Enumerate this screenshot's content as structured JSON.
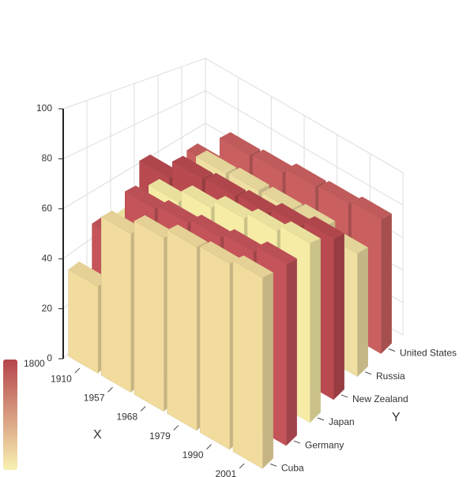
{
  "chart_data": {
    "type": "bar3d",
    "categories": [
      "1910",
      "1957",
      "1968",
      "1979",
      "1990",
      "2001"
    ],
    "series": [
      {
        "name": "Cuba",
        "color": "#f1dc9e",
        "values": [
          35,
          64,
          70,
          74,
          75,
          77
        ]
      },
      {
        "name": "Germany",
        "color": "#c4545a",
        "values": [
          47,
          69,
          71,
          73,
          75,
          78
        ]
      },
      {
        "name": "Japan",
        "color": "#f6eca6",
        "values": [
          44,
          66,
          72,
          76,
          79,
          82
        ]
      },
      {
        "name": "New Zealand",
        "color": "#b84a50",
        "values": [
          62,
          71,
          72,
          73,
          76,
          79
        ]
      },
      {
        "name": "Russia",
        "color": "#efdfa2",
        "values": [
          33,
          67,
          68,
          68,
          69,
          65
        ]
      },
      {
        "name": "United States",
        "color": "#c9605f",
        "values": [
          52,
          70,
          71,
          74,
          75,
          77
        ]
      }
    ],
    "x_label": "X",
    "y_label": "Y",
    "zlim": [
      0,
      100
    ],
    "zticks": [
      0,
      20,
      40,
      60,
      80,
      100
    ],
    "colorbar_max": 1800,
    "colorscale": [
      "#f8f1b2",
      "#b5444c"
    ],
    "grid": true
  }
}
